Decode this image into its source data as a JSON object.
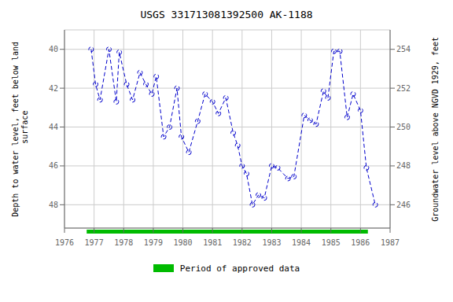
{
  "chart_data": {
    "type": "line",
    "title": "USGS 331713081392500 AK-1188",
    "ylabel": "Depth to water level, feet below land\n surface",
    "y2label": "Groundwater level above NGVD 1929, feet",
    "x": [
      1976.9,
      1977.05,
      1977.2,
      1977.5,
      1977.75,
      1977.85,
      1978.1,
      1978.3,
      1978.55,
      1978.75,
      1978.95,
      1979.1,
      1979.35,
      1979.55,
      1979.8,
      1979.95,
      1980.2,
      1980.5,
      1980.75,
      1981.0,
      1981.2,
      1981.45,
      1981.7,
      1981.85,
      1982.0,
      1982.15,
      1982.35,
      1982.55,
      1982.75,
      1983.0,
      1983.2,
      1983.55,
      1983.75,
      1984.1,
      1984.3,
      1984.5,
      1984.75,
      1984.9,
      1985.1,
      1985.3,
      1985.55,
      1985.75,
      1986.0,
      1986.2,
      1986.5
    ],
    "values": [
      40.0,
      41.8,
      42.6,
      40.0,
      42.7,
      40.15,
      41.8,
      42.6,
      41.2,
      41.8,
      42.3,
      41.4,
      44.5,
      44.0,
      42.0,
      44.5,
      45.3,
      43.7,
      42.3,
      42.7,
      43.3,
      42.5,
      44.3,
      44.95,
      46.0,
      46.4,
      48.0,
      47.5,
      47.65,
      46.0,
      46.1,
      46.65,
      46.55,
      43.4,
      43.65,
      43.85,
      42.15,
      42.5,
      40.1,
      40.1,
      43.5,
      42.3,
      43.15,
      46.1,
      48.0
    ],
    "color": "#0000cc",
    "marker": "circle",
    "line_style": "dashed",
    "xlim": [
      1976,
      1987
    ],
    "xticks": [
      1976,
      1977,
      1978,
      1979,
      1980,
      1981,
      1982,
      1983,
      1984,
      1985,
      1986,
      1987
    ],
    "ylim": [
      49.2,
      39.0
    ],
    "yticks": [
      40.0,
      42.0,
      44.0,
      46.0,
      48.0
    ],
    "y2lim": [
      244.8,
      255.0
    ],
    "y2ticks": [
      246.0,
      248.0,
      250.0,
      252.0,
      254.0
    ],
    "grid": true,
    "legend": "bottom",
    "approved_period": {
      "label": "Period of approved data",
      "start": 1976.75,
      "end": 1986.25,
      "color": "#00bb00"
    }
  }
}
